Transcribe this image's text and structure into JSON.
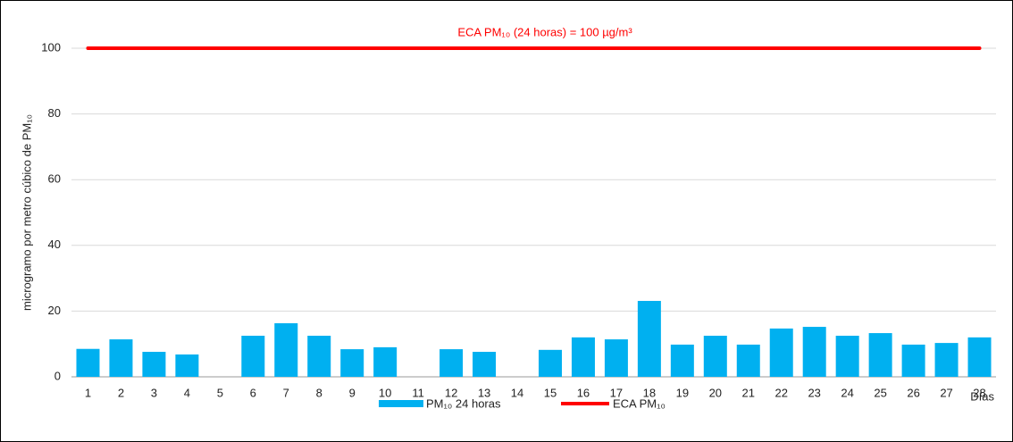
{
  "chart_data": {
    "type": "bar",
    "annotation": "ECA PM₁₀ (24 horas) = 100 µg/m³",
    "y_label": "microgramo por metro cúbico de PM₁₀",
    "x_label": "Días",
    "categories": [
      "1",
      "2",
      "3",
      "4",
      "5",
      "6",
      "7",
      "8",
      "9",
      "10",
      "11",
      "12",
      "13",
      "14",
      "15",
      "16",
      "17",
      "18",
      "19",
      "20",
      "21",
      "22",
      "23",
      "24",
      "25",
      "26",
      "27",
      "28"
    ],
    "series": [
      {
        "name": "PM₁₀ 24 horas",
        "type": "bar",
        "color": "#00b0f0",
        "values": [
          8.5,
          11.4,
          7.6,
          6.8,
          null,
          12.5,
          16.3,
          12.5,
          8.4,
          9,
          null,
          8.4,
          7.6,
          null,
          8.2,
          12,
          11.4,
          23.1,
          9.8,
          12.5,
          9.8,
          14.7,
          15.2,
          12.5,
          13.3,
          9.8,
          10.3,
          12
        ]
      },
      {
        "name": "ECA PM₁₀",
        "type": "line",
        "color": "#ff0000",
        "values": [
          100,
          100,
          100,
          100,
          100,
          100,
          100,
          100,
          100,
          100,
          100,
          100,
          100,
          100,
          100,
          100,
          100,
          100,
          100,
          100,
          100,
          100,
          100,
          100,
          100,
          100,
          100,
          100
        ]
      }
    ],
    "ylim": [
      0,
      100
    ],
    "yticks": [
      0,
      20,
      40,
      60,
      80,
      100
    ],
    "grid": true,
    "legend": "bottom"
  }
}
